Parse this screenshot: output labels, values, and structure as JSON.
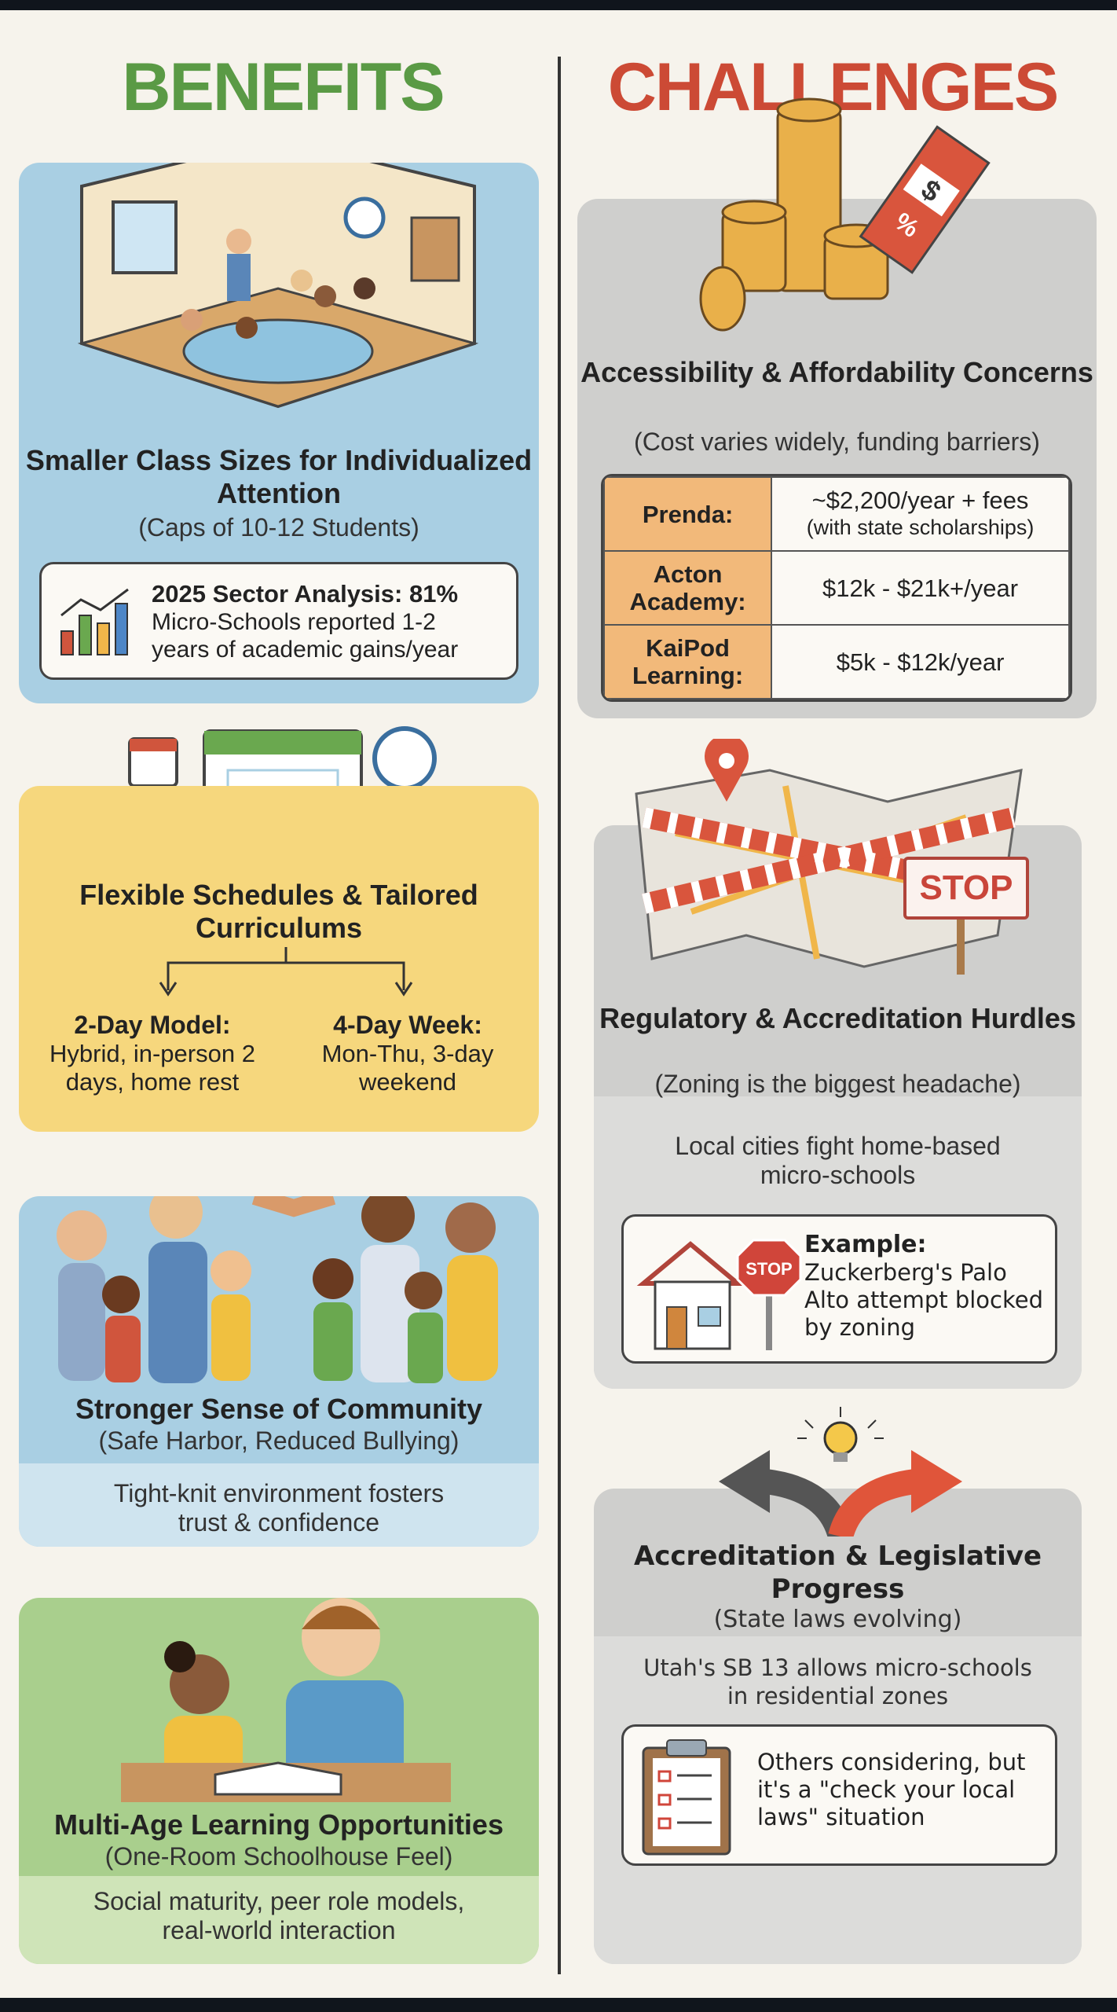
{
  "headings": {
    "benefits": "BENEFITS",
    "challenges": "CHALLENGES"
  },
  "colors": {
    "benefits": "#5a9a45",
    "challenges": "#cc4a35",
    "blue_card": "#a9cfe3",
    "yellow_card": "#f6d77d",
    "green_card": "#a9cf8d",
    "gray_card": "#cfcfcd"
  },
  "benefits": [
    {
      "title": "Smaller Class Sizes for Individualized Attention",
      "subtitle": "(Caps of 10-12 Students)",
      "callout": {
        "heading": "2025 Sector Analysis: 81%",
        "text": "Micro-Schools reported 1-2 years of academic gains/year",
        "icon": "bar-chart-trend-icon"
      },
      "illustration": "classroom-illustration"
    },
    {
      "title": "Flexible Schedules & Tailored Curriculums",
      "models": [
        {
          "title": "2-Day Model:",
          "text": "Hybrid, in-person 2 days, home rest"
        },
        {
          "title": "4-Day Week:",
          "text": "Mon-Thu, 3-day weekend"
        }
      ],
      "illustration": "calendar-clocks-illustration"
    },
    {
      "title": "Stronger Sense of Community",
      "subtitle": "(Safe Harbor, Reduced Bullying)",
      "detail": "Tight-knit environment fosters trust & confidence",
      "illustration": "families-handshake-illustration"
    },
    {
      "title": "Multi-Age Learning Opportunities",
      "subtitle": "(One-Room Schoolhouse Feel)",
      "detail": "Social maturity, peer role models, real-world interaction",
      "illustration": "older-younger-students-reading-illustration"
    }
  ],
  "challenges": [
    {
      "title": "Accessibility & Affordability Concerns",
      "subtitle": "(Cost varies widely, funding barriers)",
      "costs": [
        {
          "name": "Prenda:",
          "price": "~$2,200/year + fees",
          "note": "(with state scholarships)"
        },
        {
          "name": "Acton Academy:",
          "price": "$12k - $21k+/year"
        },
        {
          "name": "KaiPod Learning:",
          "price": "$5k - $12k/year"
        }
      ],
      "illustration": "coins-price-tag-illustration"
    },
    {
      "title": "Regulatory & Accreditation Hurdles",
      "subtitle": "(Zoning is the biggest headache)",
      "detail": "Local cities fight home-based micro-schools",
      "example": {
        "heading": "Example:",
        "text": "Zuckerberg's Palo Alto attempt blocked by zoning",
        "stop_label": "STOP"
      },
      "sign_label": "STOP",
      "illustration": "map-caution-tape-illustration"
    },
    {
      "title": "Accreditation & Legislative Progress",
      "subtitle": "(State laws evolving)",
      "detail": "Utah's SB 13 allows micro-schools in residential zones",
      "callout": "Others considering, but it's a \"check your local laws\" situation",
      "illustration": "crossroads-lightbulb-illustration"
    }
  ]
}
